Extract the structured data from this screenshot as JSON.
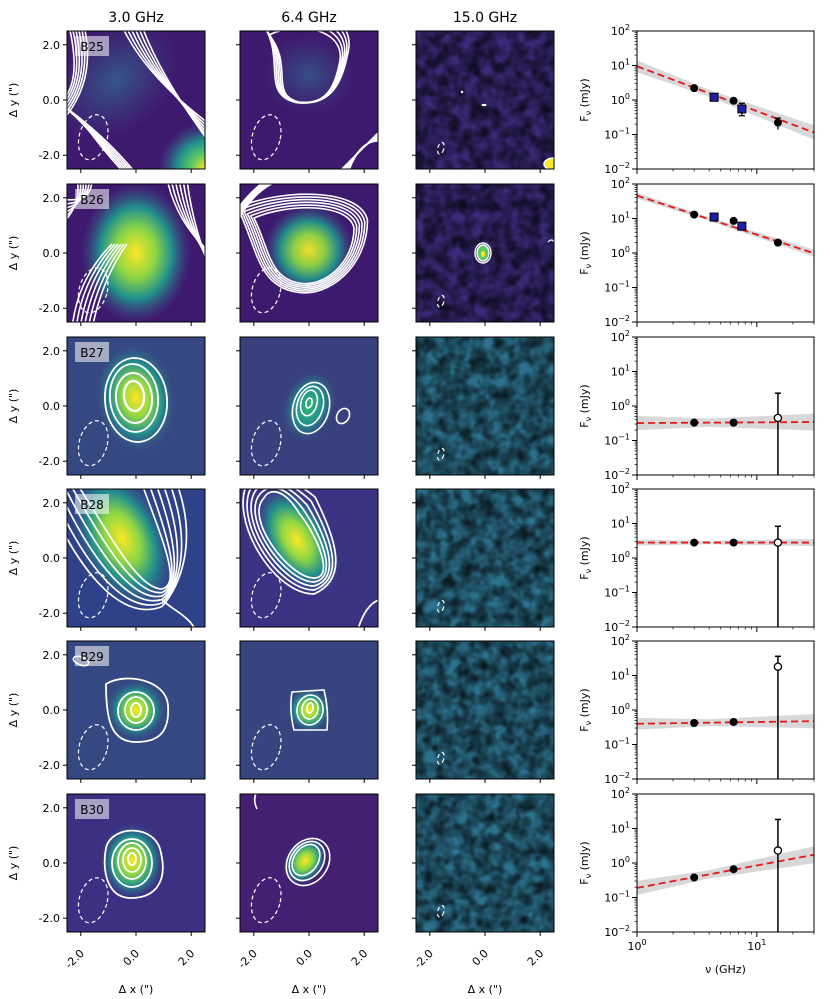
{
  "figure": {
    "column_titles": [
      "3.0 GHz",
      "6.4 GHz",
      "15.0 GHz"
    ],
    "sources": [
      "B25",
      "B26",
      "B27",
      "B28",
      "B29",
      "B30"
    ],
    "map_xlabel": "Δ x (\")",
    "map_ylabel": "Δ y (\")",
    "map_x_ticks": [
      "-2.0",
      "0.0",
      "2.0"
    ],
    "map_y_ticks": [
      "2.0",
      "0.0",
      "-2.0"
    ],
    "sed_xlabel": "ν (GHz)",
    "sed_ylabel": "F",
    "sed_ylabel_sub": "ν",
    "sed_ylabel_unit": " (mJy)",
    "sed_x_tick_labels": [
      "10",
      "0",
      "10",
      "1"
    ],
    "sed_y_tick_labels": [
      [
        "10",
        "2"
      ],
      [
        "10",
        "1"
      ],
      [
        "10",
        "0"
      ],
      [
        "10",
        "−1"
      ],
      [
        "10",
        "−2"
      ]
    ]
  },
  "colors": {
    "map_low": "#440154",
    "map_mid": "#21918c",
    "map_high": "#fde725",
    "contour": "#ffffff",
    "fit_line": "#e31a1c",
    "fit_band": "#c8c8c8",
    "detection": "#000000",
    "other_data": "#1f1fa8"
  },
  "chart_data": [
    {
      "type": "scatter",
      "source": "B25",
      "xscale": "log",
      "yscale": "log",
      "xlim": [
        1,
        30
      ],
      "ylim": [
        0.01,
        100
      ],
      "points": [
        {
          "x": 3.0,
          "y": 2.2,
          "err": 0.3
        },
        {
          "x": 6.4,
          "y": 0.95,
          "err": 0.1
        },
        {
          "x": 15.0,
          "y": 0.22,
          "err": 0.08
        }
      ],
      "other_points": [
        {
          "x": 4.4,
          "y": 1.2
        },
        {
          "x": 7.5,
          "y": 0.55,
          "err": 0.25
        }
      ],
      "upper_limits": [],
      "fit": {
        "a": 9.5,
        "alpha": -1.3,
        "band": 0.1
      }
    },
    {
      "type": "scatter",
      "source": "B26",
      "xscale": "log",
      "yscale": "log",
      "xlim": [
        1,
        30
      ],
      "ylim": [
        0.01,
        100
      ],
      "points": [
        {
          "x": 3.0,
          "y": 13,
          "err": 1.5
        },
        {
          "x": 6.4,
          "y": 8.5,
          "err": 1
        },
        {
          "x": 15.0,
          "y": 2.0,
          "err": 0.2
        }
      ],
      "other_points": [
        {
          "x": 4.4,
          "y": 11
        },
        {
          "x": 7.5,
          "y": 6.0
        }
      ],
      "upper_limits": [],
      "fit": {
        "a": 46,
        "alpha": -1.13,
        "band": 0.05
      }
    },
    {
      "type": "scatter",
      "source": "B27",
      "xscale": "log",
      "yscale": "log",
      "xlim": [
        1,
        30
      ],
      "ylim": [
        0.01,
        100
      ],
      "points": [
        {
          "x": 3.0,
          "y": 0.33
        },
        {
          "x": 6.4,
          "y": 0.33
        }
      ],
      "other_points": [],
      "upper_limits": [
        {
          "x": 15.0,
          "y": 0.45,
          "up": 1.9
        }
      ],
      "fit": {
        "a": 0.32,
        "alpha": 0.02,
        "band": 0.12
      }
    },
    {
      "type": "scatter",
      "source": "B28",
      "xscale": "log",
      "yscale": "log",
      "xlim": [
        1,
        30
      ],
      "ylim": [
        0.01,
        100
      ],
      "points": [
        {
          "x": 3.0,
          "y": 2.8
        },
        {
          "x": 6.4,
          "y": 2.8
        }
      ],
      "other_points": [],
      "upper_limits": [
        {
          "x": 15.0,
          "y": 2.8,
          "up": 5.5
        }
      ],
      "fit": {
        "a": 2.8,
        "alpha": 0.0,
        "band": 0.05
      }
    },
    {
      "type": "scatter",
      "source": "B29",
      "xscale": "log",
      "yscale": "log",
      "xlim": [
        1,
        30
      ],
      "ylim": [
        0.01,
        100
      ],
      "points": [
        {
          "x": 3.0,
          "y": 0.42
        },
        {
          "x": 6.4,
          "y": 0.45
        }
      ],
      "other_points": [],
      "upper_limits": [
        {
          "x": 15.0,
          "y": 18.0,
          "up": 18.0
        }
      ],
      "fit": {
        "a": 0.4,
        "alpha": 0.05,
        "band": 0.1
      }
    },
    {
      "type": "scatter",
      "source": "B30",
      "xscale": "log",
      "yscale": "log",
      "xlim": [
        1,
        30
      ],
      "ylim": [
        0.01,
        100
      ],
      "points": [
        {
          "x": 3.0,
          "y": 0.38
        },
        {
          "x": 6.4,
          "y": 0.66
        }
      ],
      "other_points": [],
      "upper_limits": [
        {
          "x": 15.0,
          "y": 2.3,
          "up": 16.0
        }
      ],
      "fit": {
        "a": 0.19,
        "alpha": 0.65,
        "band": 0.12
      }
    }
  ]
}
